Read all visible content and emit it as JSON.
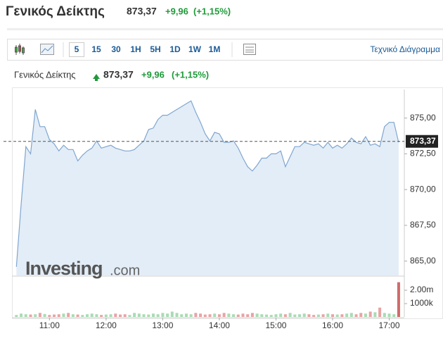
{
  "chart_data": {
    "type": "area",
    "title": "Γενικός Δείκτης",
    "last": {
      "value": 873.37,
      "label": "873,37"
    },
    "change": {
      "value": 9.96,
      "label": "+9,96"
    },
    "change_pct": {
      "value": 1.15,
      "label": "(+1,15%)"
    },
    "intervals": [
      "5",
      "15",
      "30",
      "1H",
      "5H",
      "1D",
      "1W",
      "1M"
    ],
    "technical_link": "Τεχνικό Διάγραμμα",
    "watermark": "Investing",
    "watermark_suffix": ".com",
    "color": "#7fa6cf",
    "fill": "#e3edf7",
    "x": [
      "10:25",
      "10:30",
      "10:35",
      "10:40",
      "10:45",
      "10:50",
      "10:55",
      "11:00",
      "11:05",
      "11:10",
      "11:15",
      "11:20",
      "11:25",
      "11:30",
      "11:35",
      "11:40",
      "11:45",
      "11:50",
      "11:55",
      "12:00",
      "12:05",
      "12:10",
      "12:15",
      "12:20",
      "12:25",
      "12:30",
      "12:35",
      "12:40",
      "12:45",
      "12:50",
      "12:55",
      "13:00",
      "13:05",
      "13:10",
      "13:15",
      "13:20",
      "13:25",
      "13:30",
      "13:35",
      "13:40",
      "13:45",
      "13:50",
      "13:55",
      "14:00",
      "14:05",
      "14:10",
      "14:15",
      "14:20",
      "14:25",
      "14:30",
      "14:35",
      "14:40",
      "14:45",
      "14:50",
      "14:55",
      "15:00",
      "15:05",
      "15:10",
      "15:15",
      "15:20",
      "15:25",
      "15:30",
      "15:35",
      "15:40",
      "15:45",
      "15:50",
      "15:55",
      "16:00",
      "16:05",
      "16:10",
      "16:15",
      "16:20",
      "16:25",
      "16:30",
      "16:35",
      "16:40",
      "16:45",
      "16:50",
      "16:55",
      "17:00",
      "17:05",
      "17:10"
    ],
    "values": [
      864.6,
      869.0,
      873.0,
      872.5,
      875.6,
      874.4,
      874.4,
      873.5,
      873.2,
      872.7,
      873.1,
      872.8,
      872.8,
      872.0,
      872.4,
      872.7,
      872.9,
      873.4,
      872.9,
      873.0,
      873.1,
      872.9,
      872.8,
      872.7,
      872.7,
      872.8,
      873.1,
      873.4,
      874.2,
      874.3,
      874.9,
      875.2,
      875.2,
      875.4,
      875.6,
      875.8,
      876.0,
      876.2,
      875.4,
      874.7,
      873.9,
      873.4,
      874.0,
      873.9,
      873.3,
      873.3,
      873.4,
      872.9,
      872.2,
      871.6,
      871.3,
      871.7,
      872.2,
      872.2,
      872.5,
      872.5,
      872.7,
      871.6,
      872.3,
      873.0,
      873.0,
      873.3,
      873.2,
      873.1,
      873.2,
      872.9,
      873.3,
      872.9,
      873.1,
      872.9,
      873.2,
      873.6,
      873.3,
      873.2,
      873.7,
      873.1,
      873.2,
      873.0,
      874.4,
      874.7,
      874.7,
      873.3
    ],
    "volume": [
      150000,
      250000,
      200000,
      180000,
      200000,
      300000,
      220000,
      150000,
      180000,
      200000,
      250000,
      300000,
      200000,
      180000,
      150000,
      200000,
      250000,
      200000,
      150000,
      180000,
      200000,
      250000,
      180000,
      200000,
      150000,
      300000,
      250000,
      200000,
      180000,
      250000,
      200000,
      300000,
      250000,
      400000,
      300000,
      200000,
      250000,
      200000,
      300000,
      250000,
      180000,
      200000,
      250000,
      200000,
      300000,
      250000,
      200000,
      180000,
      250000,
      200000,
      300000,
      250000,
      200000,
      180000,
      150000,
      200000,
      250000,
      200000,
      300000,
      180000,
      200000,
      250000,
      200000,
      150000,
      180000,
      200000,
      250000,
      200000,
      180000,
      200000,
      250000,
      300000,
      200000,
      300000,
      250000,
      400000,
      350000,
      700000,
      300000,
      250000,
      200000,
      2600000
    ],
    "volume_up_color": "#a8dcb3",
    "volume_down_color": "#e9a3a3",
    "volume_last_color": "#d06a6a",
    "xlim": [
      "10:24",
      "17:16"
    ],
    "xticks": [
      "11:00",
      "12:00",
      "13:00",
      "14:00",
      "15:00",
      "16:00",
      "17:00"
    ],
    "ylim": [
      864,
      877
    ],
    "yticks": [
      {
        "value": 865,
        "label": "865,00"
      },
      {
        "value": 867.5,
        "label": "867,50"
      },
      {
        "value": 870,
        "label": "870,00"
      },
      {
        "value": 872.5,
        "label": "872,50"
      },
      {
        "value": 875,
        "label": "875,00"
      }
    ],
    "volume_lim": [
      0,
      2900000
    ],
    "volume_ticks": [
      {
        "value": 1000000,
        "label": "1000k"
      },
      {
        "value": 2000000,
        "label": "2.00m"
      }
    ]
  }
}
